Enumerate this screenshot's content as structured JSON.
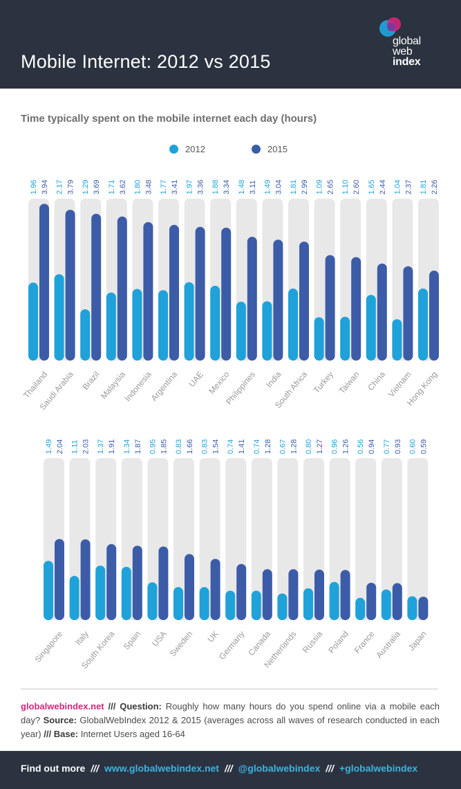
{
  "header": {
    "title": "Mobile Internet: 2012 vs 2015",
    "logo": {
      "line1": "global",
      "line2": "web",
      "line3": "index"
    }
  },
  "colors": {
    "header_bg": "#2b3340",
    "s2012": "#1ea2d9",
    "s2015": "#3c5ca8",
    "track": "#e8e8e8",
    "brand_pink": "#d0267a",
    "link_blue": "#3cb3e3"
  },
  "chart_data": [
    {
      "type": "bar",
      "title": "Time typically spent on the mobile internet each day (hours)",
      "legend_position": "top-center",
      "grid": false,
      "categories": [
        "Thailand",
        "Saudi Arabia",
        "Brazil",
        "Malaysia",
        "Indonesia",
        "Argentina",
        "UAE",
        "Mexico",
        "Philippines",
        "India",
        "South Africa",
        "Turkey",
        "Taiwan",
        "China",
        "Vietnam",
        "Hong Kong"
      ],
      "series": [
        {
          "name": "2012",
          "values": [
            1.96,
            2.17,
            1.29,
            1.71,
            1.8,
            1.77,
            1.97,
            1.88,
            1.48,
            1.49,
            1.81,
            1.09,
            1.1,
            1.65,
            1.04,
            1.81
          ]
        },
        {
          "name": "2015",
          "values": [
            3.94,
            3.79,
            3.69,
            3.62,
            3.48,
            3.41,
            3.36,
            3.34,
            3.11,
            3.04,
            2.99,
            2.65,
            2.6,
            2.44,
            2.37,
            2.26
          ]
        }
      ],
      "value_labels": {
        "2012": [
          "1.96",
          "2.17",
          "1.29",
          "1.71",
          "1.80",
          "1.77",
          "1.97",
          "1.88",
          "1.48",
          "1.49",
          "1.81",
          "1.09",
          "1.10",
          "1.65",
          "1.04",
          "1.81"
        ],
        "2015": [
          "3.94",
          "3.79",
          "3.69",
          "3.62",
          "3.48",
          "3.41",
          "3.36",
          "3.34",
          "3.11",
          "3.04",
          "2.99",
          "2.65",
          "2.60",
          "2.44",
          "2.37",
          "2.26"
        ]
      },
      "ylim": [
        0,
        4
      ]
    },
    {
      "type": "bar",
      "categories": [
        "Singapore",
        "Italy",
        "South Korea",
        "Spain",
        "USA",
        "Sweden",
        "UK",
        "Germany",
        "Canada",
        "Netherlands",
        "Russia",
        "Poland",
        "France",
        "Australia",
        "Japan"
      ],
      "series": [
        {
          "name": "2012",
          "values": [
            1.49,
            1.11,
            1.37,
            1.34,
            0.95,
            0.83,
            0.83,
            0.74,
            0.74,
            0.67,
            0.8,
            0.96,
            0.56,
            0.77,
            0.6
          ]
        },
        {
          "name": "2015",
          "values": [
            2.04,
            2.03,
            1.91,
            1.87,
            1.85,
            1.66,
            1.54,
            1.41,
            1.28,
            1.28,
            1.27,
            1.26,
            0.94,
            0.93,
            0.59
          ]
        }
      ],
      "value_labels": {
        "2012": [
          "1.49",
          "1.11",
          "1.37",
          "1.34",
          "0.95",
          "0.83",
          "0.83",
          "0.74",
          "0.74",
          "0.67",
          "0.80",
          "0.96",
          "0.56",
          "0.77",
          "0.60"
        ],
        "2015": [
          "2.04",
          "2.03",
          "1.91",
          "1.87",
          "1.85",
          "1.66",
          "1.54",
          "1.41",
          "1.28",
          "1.28",
          "1.27",
          "1.26",
          "0.94",
          "0.93",
          "0.59"
        ]
      },
      "ylim": [
        0,
        4
      ]
    }
  ],
  "footnote": {
    "brand": "globalwebindex.net",
    "sep1": "///",
    "question_label": "Question:",
    "question": "Roughly how many hours do you spend online via a mobile each day?",
    "source_label": "Source:",
    "source": "GlobalWebIndex 2012 & 2015 (averages across all waves of research conducted in each year)",
    "sep2": "///",
    "base_label": "Base:",
    "base": "Internet Users aged 16-64"
  },
  "footer": {
    "find_out_more": "Find out more",
    "sep": "///",
    "website": "www.globalwebindex.net",
    "twitter": "@globalwebindex",
    "gplus": "+globalwebindex"
  }
}
